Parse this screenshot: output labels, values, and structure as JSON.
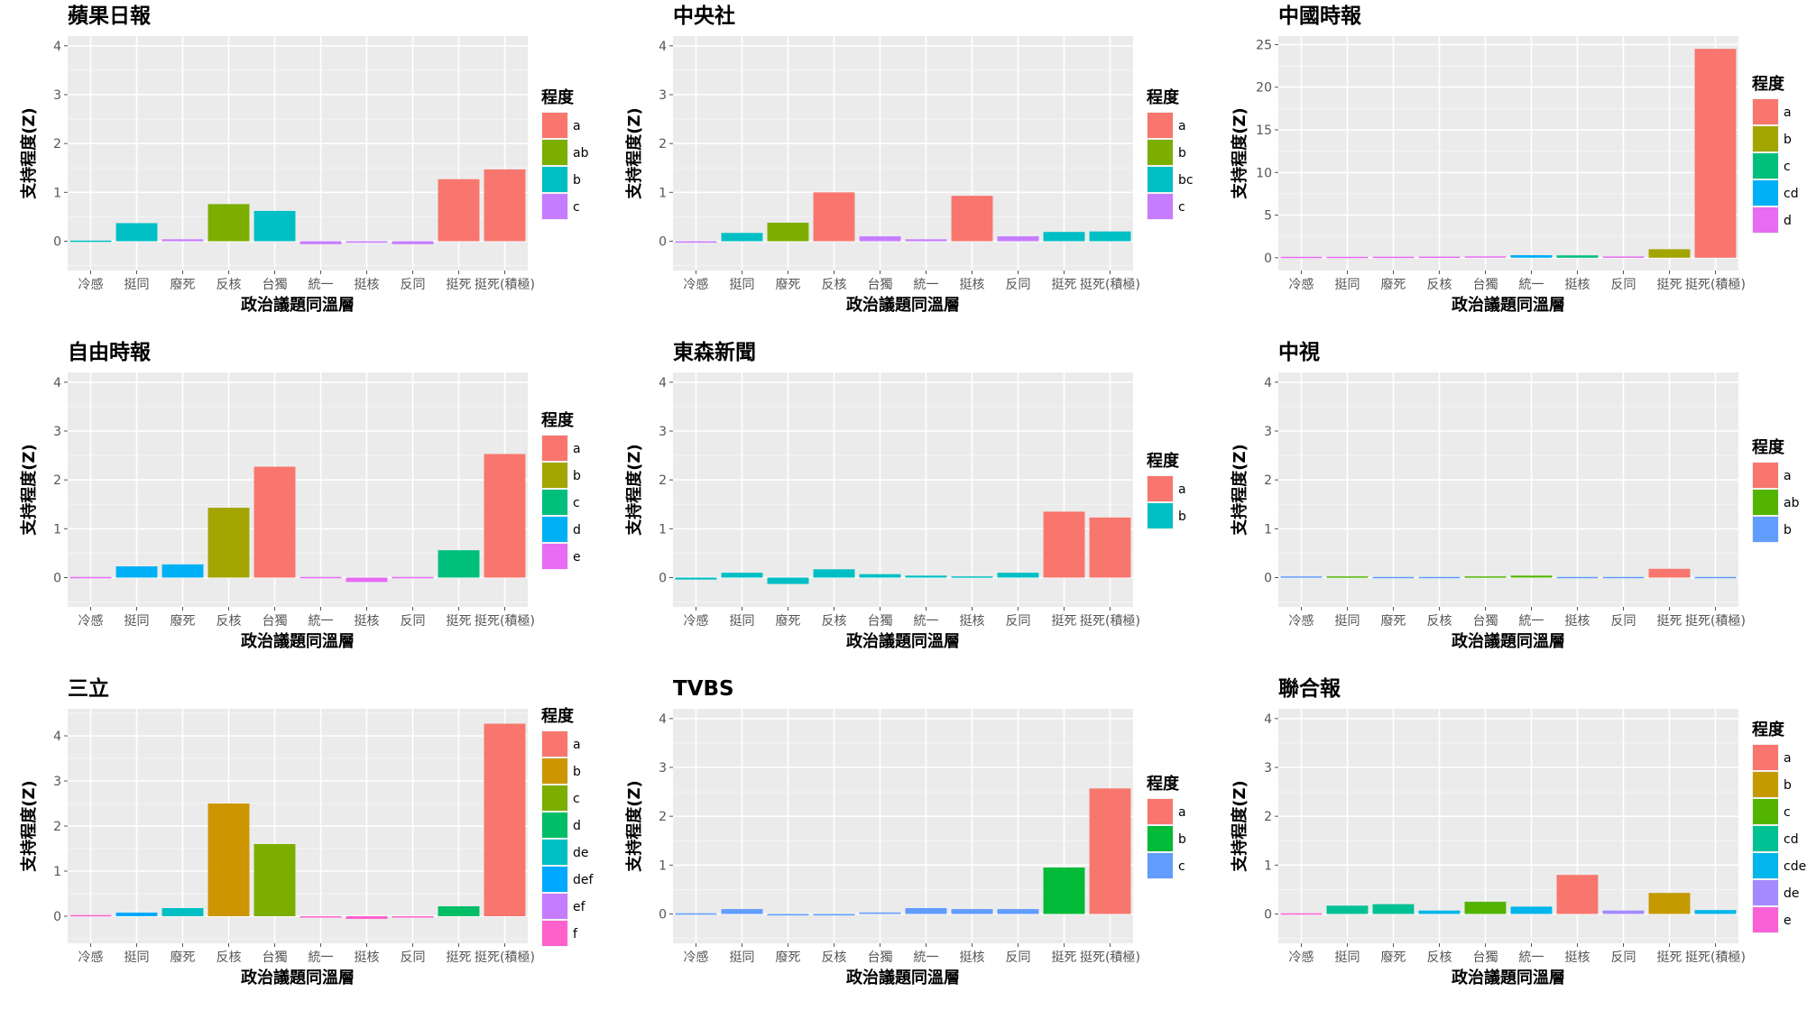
{
  "figure": {
    "shared_xlabel": "政治議題同溫層",
    "shared_ylabel": "支持程度(Z)",
    "legend_title": "程度"
  },
  "chart_data": [
    {
      "type": "bar",
      "title": "蘋果日報",
      "categories": [
        "冷感",
        "挺同",
        "廢死",
        "反核",
        "台獨",
        "統一",
        "挺核",
        "反同",
        "挺死",
        "挺死(積極)"
      ],
      "values": [
        0.0,
        0.37,
        0.04,
        0.76,
        0.62,
        -0.06,
        -0.03,
        -0.06,
        1.27,
        1.47
      ],
      "groups": [
        "b",
        "b",
        "c",
        "ab",
        "b",
        "c",
        "c",
        "c",
        "a",
        "a"
      ],
      "ylim": [
        -0.6,
        4.2
      ],
      "yticks": [
        0,
        1,
        2,
        3,
        4
      ],
      "xlabel": "政治議題同溫層",
      "ylabel": "支持程度(Z)",
      "legend_title": "程度",
      "legend": [
        {
          "label": "a",
          "color": "#F8766D"
        },
        {
          "label": "ab",
          "color": "#7CAE00"
        },
        {
          "label": "b",
          "color": "#00BFC4"
        },
        {
          "label": "c",
          "color": "#C77CFF"
        }
      ]
    },
    {
      "type": "bar",
      "title": "中央社",
      "categories": [
        "冷感",
        "挺同",
        "廢死",
        "反核",
        "台獨",
        "統一",
        "挺核",
        "反同",
        "挺死",
        "挺死(積極)"
      ],
      "values": [
        -0.03,
        0.17,
        0.38,
        1.0,
        0.1,
        0.04,
        0.93,
        0.1,
        0.19,
        0.2
      ],
      "groups": [
        "c",
        "bc",
        "b",
        "a",
        "c",
        "c",
        "a",
        "c",
        "bc",
        "bc"
      ],
      "ylim": [
        -0.6,
        4.2
      ],
      "yticks": [
        0,
        1,
        2,
        3,
        4
      ],
      "xlabel": "政治議題同溫層",
      "ylabel": "支持程度(Z)",
      "legend_title": "程度",
      "legend": [
        {
          "label": "a",
          "color": "#F8766D"
        },
        {
          "label": "b",
          "color": "#7CAE00"
        },
        {
          "label": "bc",
          "color": "#00BFC4"
        },
        {
          "label": "c",
          "color": "#C77CFF"
        }
      ]
    },
    {
      "type": "bar",
      "title": "中國時報",
      "categories": [
        "冷感",
        "挺同",
        "廢死",
        "反核",
        "台獨",
        "統一",
        "挺核",
        "反同",
        "挺死",
        "挺死(積極)"
      ],
      "values": [
        0.03,
        0.03,
        0.04,
        0.05,
        0.08,
        0.3,
        0.28,
        0.07,
        1.0,
        24.5
      ],
      "groups": [
        "d",
        "d",
        "d",
        "d",
        "d",
        "cd",
        "c",
        "d",
        "b",
        "a"
      ],
      "ylim": [
        -1.5,
        26
      ],
      "yticks": [
        0,
        5,
        10,
        15,
        20,
        25
      ],
      "xlabel": "政治議題同溫層",
      "ylabel": "支持程度(Z)",
      "legend_title": "程度",
      "legend": [
        {
          "label": "a",
          "color": "#F8766D"
        },
        {
          "label": "b",
          "color": "#A3A500"
        },
        {
          "label": "c",
          "color": "#00BF7D"
        },
        {
          "label": "cd",
          "color": "#00B0F6"
        },
        {
          "label": "d",
          "color": "#E76BF3"
        }
      ]
    },
    {
      "type": "bar",
      "title": "自由時報",
      "categories": [
        "冷感",
        "挺同",
        "廢死",
        "反核",
        "台獨",
        "統一",
        "挺核",
        "反同",
        "挺死",
        "挺死(積極)"
      ],
      "values": [
        0.0,
        0.23,
        0.27,
        1.43,
        2.27,
        0.0,
        -0.09,
        0.0,
        0.56,
        2.53
      ],
      "groups": [
        "e",
        "d",
        "d",
        "b",
        "a",
        "e",
        "e",
        "e",
        "c",
        "a"
      ],
      "ylim": [
        -0.6,
        4.2
      ],
      "yticks": [
        0,
        1,
        2,
        3,
        4
      ],
      "xlabel": "政治議題同溫層",
      "ylabel": "支持程度(Z)",
      "legend_title": "程度",
      "legend": [
        {
          "label": "a",
          "color": "#F8766D"
        },
        {
          "label": "b",
          "color": "#A3A500"
        },
        {
          "label": "c",
          "color": "#00BF7D"
        },
        {
          "label": "d",
          "color": "#00B0F6"
        },
        {
          "label": "e",
          "color": "#E76BF3"
        }
      ]
    },
    {
      "type": "bar",
      "title": "東森新聞",
      "categories": [
        "冷感",
        "挺同",
        "廢死",
        "反核",
        "台獨",
        "統一",
        "挺核",
        "反同",
        "挺死",
        "挺死(積極)"
      ],
      "values": [
        -0.04,
        0.1,
        -0.13,
        0.17,
        0.07,
        0.04,
        0.01,
        0.1,
        1.35,
        1.23
      ],
      "groups": [
        "b",
        "b",
        "b",
        "b",
        "b",
        "b",
        "b",
        "b",
        "a",
        "a"
      ],
      "ylim": [
        -0.6,
        4.2
      ],
      "yticks": [
        0,
        1,
        2,
        3,
        4
      ],
      "xlabel": "政治議題同溫層",
      "ylabel": "支持程度(Z)",
      "legend_title": "程度",
      "legend": [
        {
          "label": "a",
          "color": "#F8766D"
        },
        {
          "label": "b",
          "color": "#00BFC4"
        }
      ]
    },
    {
      "type": "bar",
      "title": "中視",
      "categories": [
        "冷感",
        "挺同",
        "廢死",
        "反核",
        "台獨",
        "統一",
        "挺核",
        "反同",
        "挺死",
        "挺死(積極)"
      ],
      "values": [
        0.01,
        0.01,
        -0.02,
        -0.02,
        0.01,
        0.04,
        -0.02,
        -0.02,
        0.18,
        -0.02
      ],
      "groups": [
        "b",
        "ab",
        "b",
        "b",
        "ab",
        "ab",
        "b",
        "b",
        "a",
        "b"
      ],
      "ylim": [
        -0.6,
        4.2
      ],
      "yticks": [
        0,
        1,
        2,
        3,
        4
      ],
      "xlabel": "政治議題同溫層",
      "ylabel": "支持程度(Z)",
      "legend_title": "程度",
      "legend": [
        {
          "label": "a",
          "color": "#F8766D"
        },
        {
          "label": "ab",
          "color": "#53B400"
        },
        {
          "label": "b",
          "color": "#619CFF"
        }
      ]
    },
    {
      "type": "bar",
      "title": "三立",
      "categories": [
        "冷感",
        "挺同",
        "廢死",
        "反核",
        "台獨",
        "統一",
        "挺核",
        "反同",
        "挺死",
        "挺死(積極)"
      ],
      "values": [
        0.01,
        0.08,
        0.18,
        2.5,
        1.6,
        -0.03,
        -0.06,
        -0.03,
        0.22,
        4.27
      ],
      "groups": [
        "f",
        "def",
        "de",
        "b",
        "c",
        "f",
        "f",
        "f",
        "d",
        "a"
      ],
      "ylim": [
        -0.6,
        4.6
      ],
      "yticks": [
        0,
        1,
        2,
        3,
        4
      ],
      "xlabel": "政治議題同溫層",
      "ylabel": "支持程度(Z)",
      "legend_title": "程度",
      "legend": [
        {
          "label": "a",
          "color": "#F8766D"
        },
        {
          "label": "b",
          "color": "#CD9600"
        },
        {
          "label": "c",
          "color": "#7CAE00"
        },
        {
          "label": "d",
          "color": "#00BE67"
        },
        {
          "label": "de",
          "color": "#00BFC4"
        },
        {
          "label": "def",
          "color": "#00A9FF"
        },
        {
          "label": "ef",
          "color": "#C77CFF"
        },
        {
          "label": "f",
          "color": "#FF61CC"
        }
      ]
    },
    {
      "type": "bar",
      "title": "TVBS",
      "categories": [
        "冷感",
        "挺同",
        "廢死",
        "反核",
        "台獨",
        "統一",
        "挺核",
        "反同",
        "挺死",
        "挺死(積極)"
      ],
      "values": [
        0.0,
        0.1,
        -0.03,
        -0.03,
        0.03,
        0.12,
        0.1,
        0.1,
        0.95,
        2.57
      ],
      "groups": [
        "c",
        "c",
        "c",
        "c",
        "c",
        "c",
        "c",
        "c",
        "b",
        "a"
      ],
      "ylim": [
        -0.6,
        4.2
      ],
      "yticks": [
        0,
        1,
        2,
        3,
        4
      ],
      "xlabel": "政治議題同溫層",
      "ylabel": "支持程度(Z)",
      "legend_title": "程度",
      "legend": [
        {
          "label": "a",
          "color": "#F8766D"
        },
        {
          "label": "b",
          "color": "#00BA38"
        },
        {
          "label": "c",
          "color": "#619CFF"
        }
      ]
    },
    {
      "type": "bar",
      "title": "聯合報",
      "categories": [
        "冷感",
        "挺同",
        "廢死",
        "反核",
        "台獨",
        "統一",
        "挺核",
        "反同",
        "挺死",
        "挺死(積極)"
      ],
      "values": [
        0.0,
        0.17,
        0.2,
        0.07,
        0.25,
        0.15,
        0.8,
        0.07,
        0.43,
        0.08
      ],
      "groups": [
        "e",
        "cd",
        "cd",
        "cde",
        "c",
        "cde",
        "a",
        "de",
        "b",
        "cde"
      ],
      "ylim": [
        -0.6,
        4.2
      ],
      "yticks": [
        0,
        1,
        2,
        3,
        4
      ],
      "xlabel": "政治議題同溫層",
      "ylabel": "支持程度(Z)",
      "legend_title": "程度",
      "legend": [
        {
          "label": "a",
          "color": "#F8766D"
        },
        {
          "label": "b",
          "color": "#C49A00"
        },
        {
          "label": "c",
          "color": "#53B400"
        },
        {
          "label": "cd",
          "color": "#00C094"
        },
        {
          "label": "cde",
          "color": "#00B6EB"
        },
        {
          "label": "de",
          "color": "#A58AFF"
        },
        {
          "label": "e",
          "color": "#FB61D7"
        }
      ]
    }
  ]
}
